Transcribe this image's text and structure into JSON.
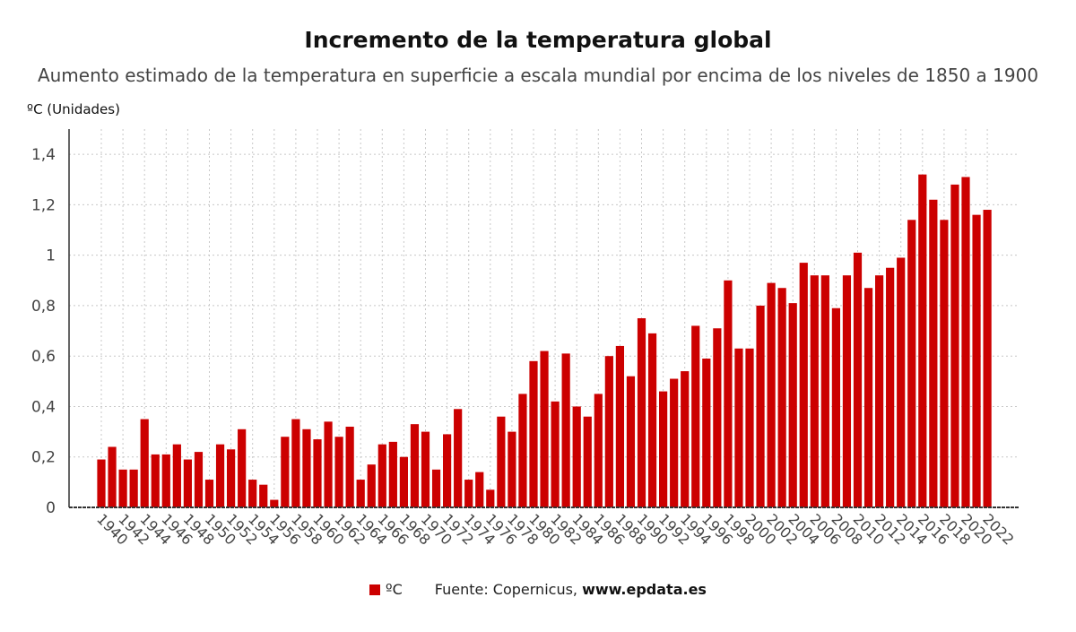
{
  "chart_data": {
    "type": "bar",
    "title": "Incremento de la temperatura global",
    "subtitle": "Aumento estimado de la temperatura en superficie a escala mundial por encima de los niveles de 1850 a 1900",
    "ylabel": "ºC (Unidades)",
    "ylim": [
      0,
      1.5
    ],
    "yticks": [
      0,
      0.2,
      0.4,
      0.6,
      0.8,
      1,
      1.2,
      1.4
    ],
    "ytick_labels": [
      "0",
      "0,2",
      "0,4",
      "0,6",
      "0,8",
      "1",
      "1,2",
      "1,4"
    ],
    "grid": true,
    "legend_position": "bottom",
    "categories": [
      1940,
      1941,
      1942,
      1943,
      1944,
      1945,
      1946,
      1947,
      1948,
      1949,
      1950,
      1951,
      1952,
      1953,
      1954,
      1955,
      1956,
      1957,
      1958,
      1959,
      1960,
      1961,
      1962,
      1963,
      1964,
      1965,
      1966,
      1967,
      1968,
      1969,
      1970,
      1971,
      1972,
      1973,
      1974,
      1975,
      1976,
      1977,
      1978,
      1979,
      1980,
      1981,
      1982,
      1983,
      1984,
      1985,
      1986,
      1987,
      1988,
      1989,
      1990,
      1991,
      1992,
      1993,
      1994,
      1995,
      1996,
      1997,
      1998,
      1999,
      2000,
      2001,
      2002,
      2003,
      2004,
      2005,
      2006,
      2007,
      2008,
      2009,
      2010,
      2011,
      2012,
      2013,
      2014,
      2015,
      2016,
      2017,
      2018,
      2019,
      2020,
      2021,
      2022
    ],
    "xtick_labels": [
      "1940",
      "1942",
      "1944",
      "1946",
      "1948",
      "1950",
      "1952",
      "1954",
      "1956",
      "1958",
      "1960",
      "1962",
      "1964",
      "1966",
      "1968",
      "1970",
      "1972",
      "1974",
      "1976",
      "1978",
      "1980",
      "1982",
      "1984",
      "1986",
      "1988",
      "1990",
      "1992",
      "1994",
      "1996",
      "1998",
      "2000",
      "2002",
      "2004",
      "2006",
      "2008",
      "2010",
      "2012",
      "2014",
      "2016",
      "2018",
      "2020",
      "2022"
    ],
    "series": [
      {
        "name": "ºC",
        "color": "#cc0000",
        "values": [
          0.19,
          0.24,
          0.15,
          0.15,
          0.35,
          0.21,
          0.21,
          0.25,
          0.19,
          0.22,
          0.11,
          0.25,
          0.23,
          0.31,
          0.11,
          0.09,
          0.03,
          0.28,
          0.35,
          0.31,
          0.27,
          0.34,
          0.28,
          0.32,
          0.11,
          0.17,
          0.25,
          0.26,
          0.2,
          0.33,
          0.3,
          0.15,
          0.29,
          0.39,
          0.11,
          0.14,
          0.07,
          0.36,
          0.3,
          0.45,
          0.58,
          0.62,
          0.42,
          0.61,
          0.4,
          0.36,
          0.45,
          0.6,
          0.64,
          0.52,
          0.75,
          0.69,
          0.46,
          0.51,
          0.54,
          0.72,
          0.59,
          0.71,
          0.9,
          0.63,
          0.63,
          0.8,
          0.89,
          0.87,
          0.81,
          0.97,
          0.92,
          0.92,
          0.79,
          0.92,
          1.01,
          0.87,
          0.92,
          0.95,
          0.99,
          1.14,
          1.32,
          1.22,
          1.14,
          1.28,
          1.31,
          1.16,
          1.18
        ]
      }
    ]
  },
  "legend": {
    "series_label": "ºC",
    "source_prefix": "Fuente: Copernicus,",
    "source_site": "www.epdata.es"
  }
}
